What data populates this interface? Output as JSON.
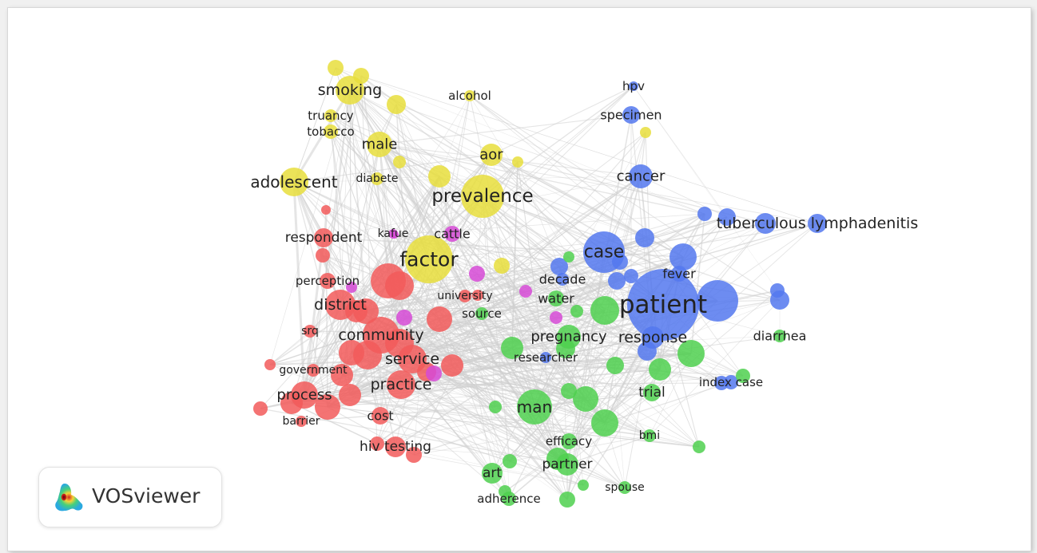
{
  "brand": {
    "name": "VOSviewer"
  },
  "colors": {
    "cluster1": "#f25a5a",
    "cluster2": "#4fd04f",
    "cluster3": "#5478ef",
    "cluster4": "#e8de3c",
    "cluster5": "#d64ad6",
    "edge": "#cfcfcf"
  },
  "labels": [
    {
      "text": "smoking",
      "cluster": 4
    },
    {
      "text": "alcohol",
      "cluster": 4
    },
    {
      "text": "truancy",
      "cluster": 4
    },
    {
      "text": "tobacco",
      "cluster": 4
    },
    {
      "text": "male",
      "cluster": 4
    },
    {
      "text": "aor",
      "cluster": 4
    },
    {
      "text": "adolescent",
      "cluster": 4
    },
    {
      "text": "diabete",
      "cluster": 4
    },
    {
      "text": "prevalence",
      "cluster": 4
    },
    {
      "text": "factor",
      "cluster": 4
    },
    {
      "text": "hpv",
      "cluster": 3
    },
    {
      "text": "specimen",
      "cluster": 3
    },
    {
      "text": "cancer",
      "cluster": 3
    },
    {
      "text": "tuberculous lymphadenitis",
      "cluster": 3
    },
    {
      "text": "case",
      "cluster": 3
    },
    {
      "text": "fever",
      "cluster": 3
    },
    {
      "text": "decade",
      "cluster": 3
    },
    {
      "text": "patient",
      "cluster": 3
    },
    {
      "text": "response",
      "cluster": 3
    },
    {
      "text": "index case",
      "cluster": 3
    },
    {
      "text": "researcher",
      "cluster": 3
    },
    {
      "text": "respondent",
      "cluster": 1
    },
    {
      "text": "perception",
      "cluster": 1
    },
    {
      "text": "district",
      "cluster": 1
    },
    {
      "text": "srq",
      "cluster": 1
    },
    {
      "text": "community",
      "cluster": 1
    },
    {
      "text": "government",
      "cluster": 1
    },
    {
      "text": "service",
      "cluster": 1
    },
    {
      "text": "process",
      "cluster": 1
    },
    {
      "text": "practice",
      "cluster": 1
    },
    {
      "text": "barrier",
      "cluster": 1
    },
    {
      "text": "cost",
      "cluster": 1
    },
    {
      "text": "hiv testing",
      "cluster": 1
    },
    {
      "text": "university",
      "cluster": 1
    },
    {
      "text": "kafue",
      "cluster": 5
    },
    {
      "text": "cattle",
      "cluster": 5
    },
    {
      "text": "water",
      "cluster": 2
    },
    {
      "text": "source",
      "cluster": 2
    },
    {
      "text": "pregnancy",
      "cluster": 2
    },
    {
      "text": "diarrhea",
      "cluster": 2
    },
    {
      "text": "trial",
      "cluster": 2
    },
    {
      "text": "man",
      "cluster": 2
    },
    {
      "text": "efficacy",
      "cluster": 2
    },
    {
      "text": "bmi",
      "cluster": 2
    },
    {
      "text": "partner",
      "cluster": 2
    },
    {
      "text": "art",
      "cluster": 2
    },
    {
      "text": "spouse",
      "cluster": 2
    },
    {
      "text": "adherence",
      "cluster": 2
    }
  ]
}
